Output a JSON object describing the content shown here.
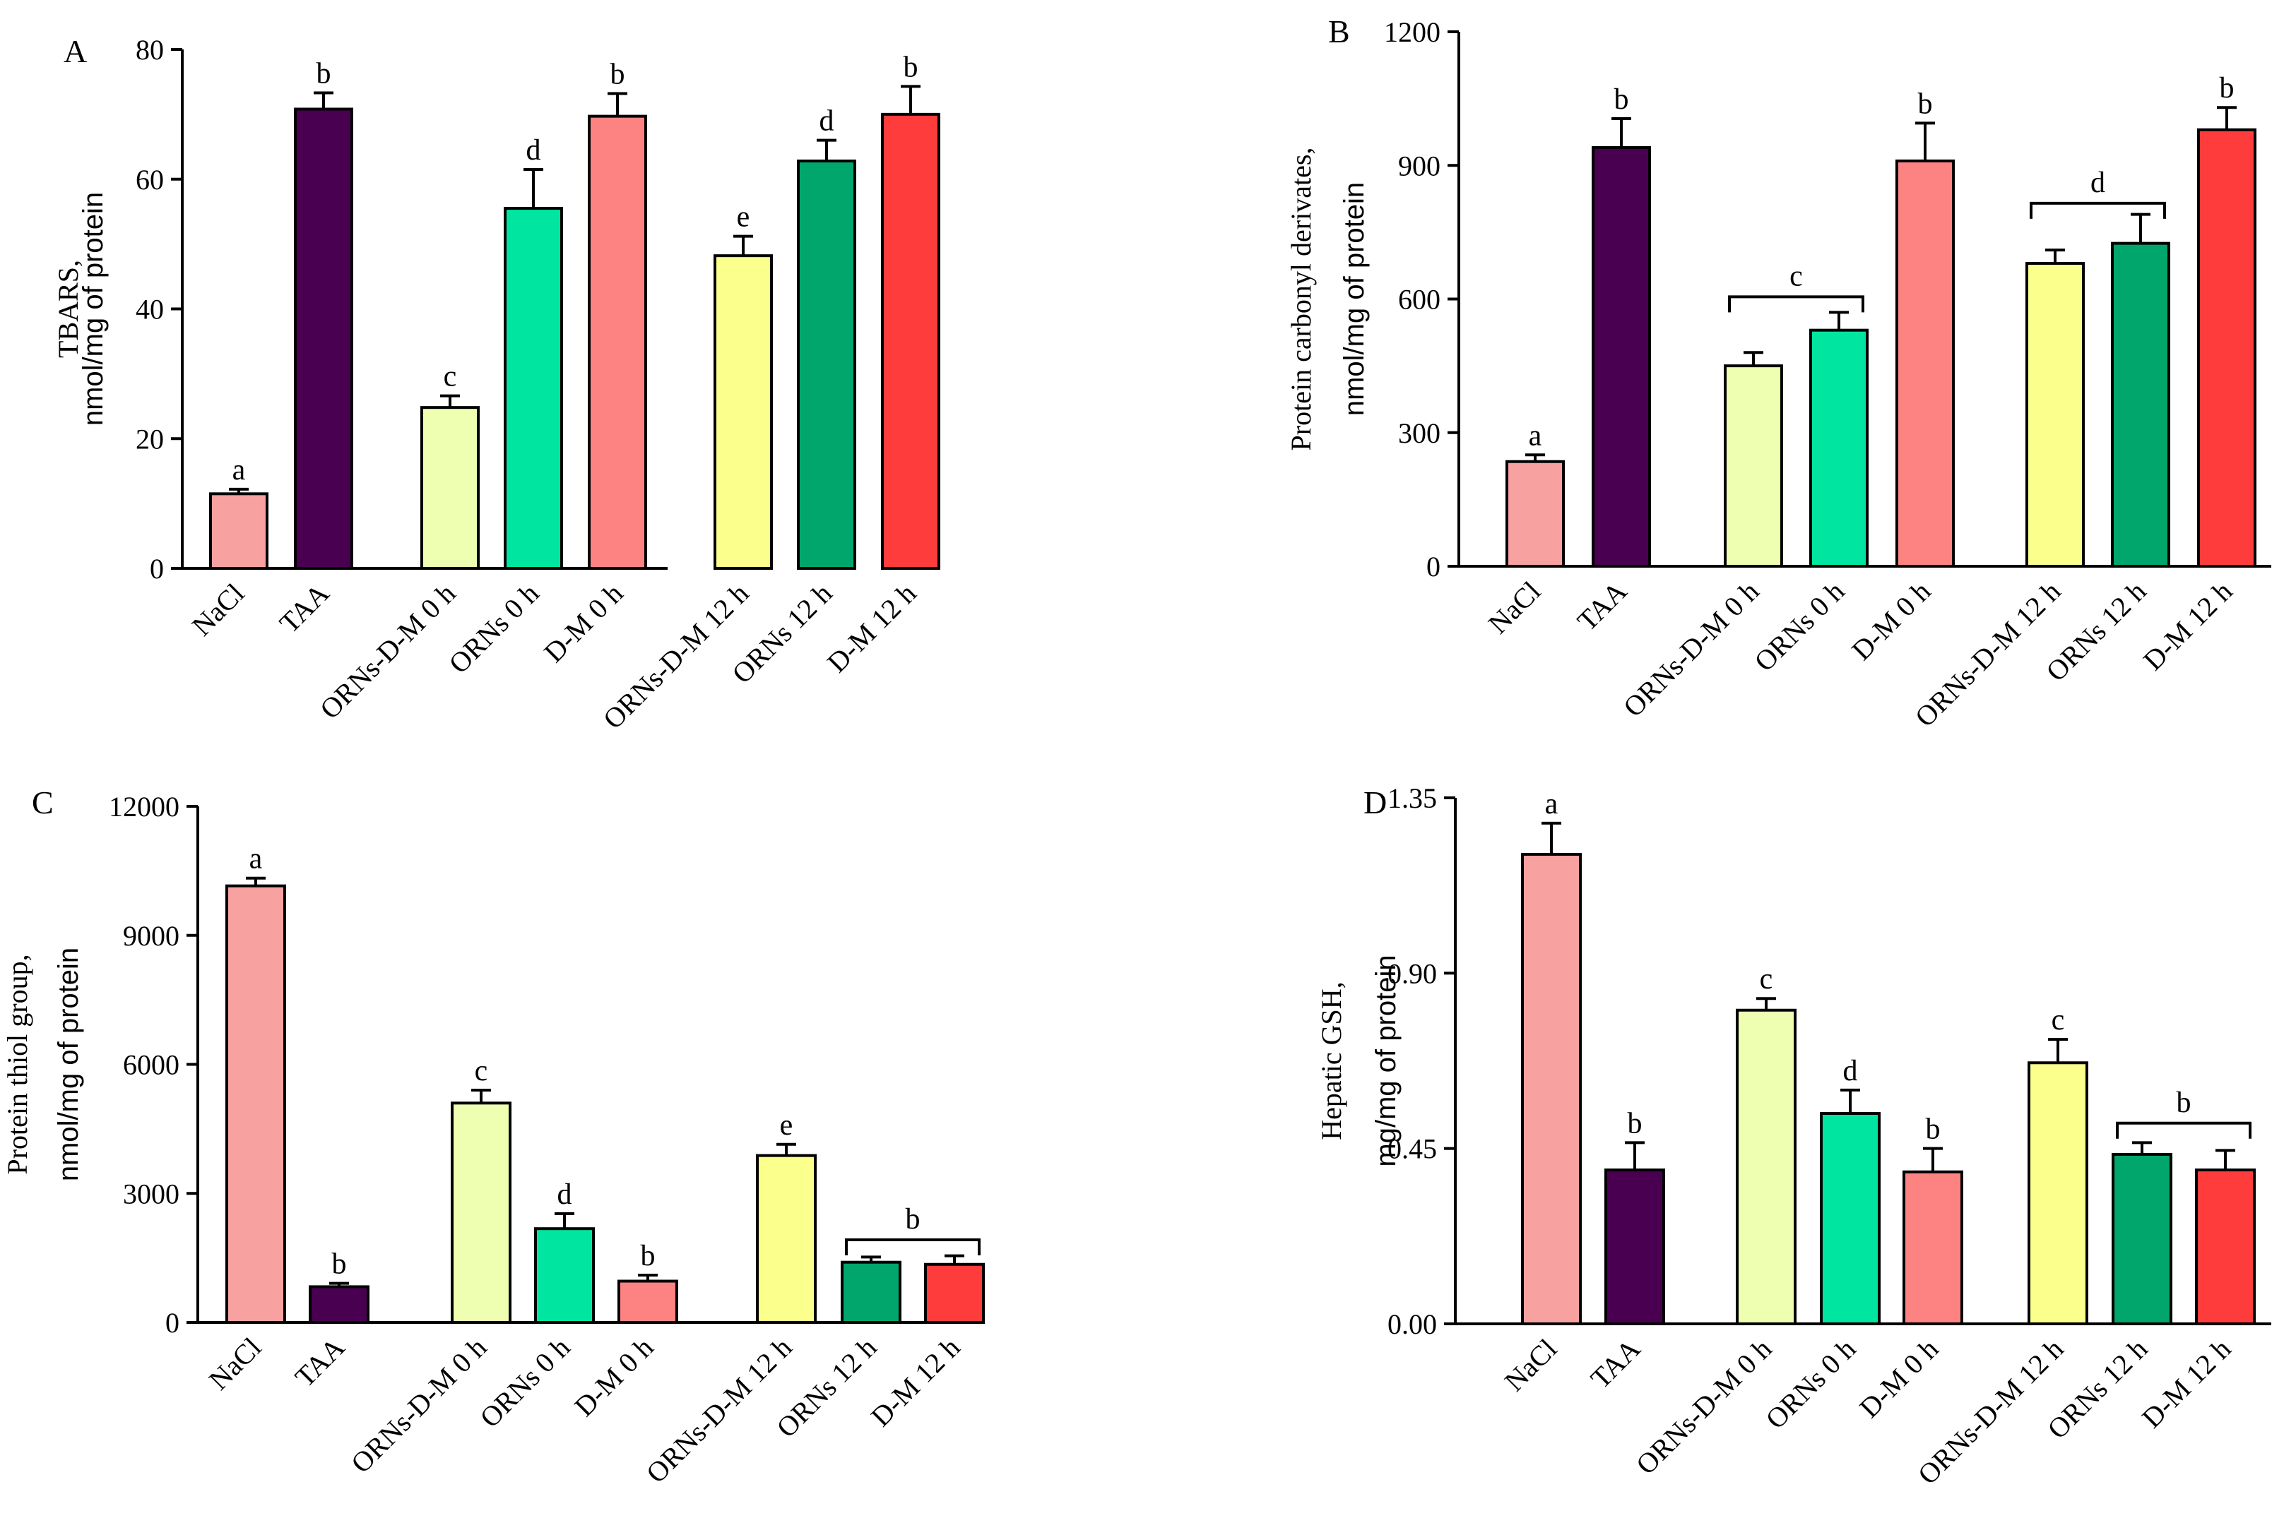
{
  "chart_data": [
    {
      "type": "bar",
      "panel_label": "A",
      "ylabel": "TBARS,",
      "ylabel_unit": "nmol/mg of protein",
      "ylim": [
        0,
        80
      ],
      "yticks": [
        "0",
        "20",
        "40",
        "60",
        "80"
      ],
      "categories": [
        "NaCl",
        "TAA",
        "ORNs-D-M 0 h",
        "ORNs 0 h",
        "D-M 0 h",
        "ORNs-D-M 12 h",
        "ORNs 12 h",
        "D-M 12 h"
      ],
      "values": [
        11.5,
        70.8,
        24.8,
        55.5,
        69.7,
        48.2,
        62.8,
        70
      ],
      "errors": [
        0.7,
        2.5,
        1.8,
        6,
        3.5,
        3,
        3.2,
        4.3
      ],
      "colors": [
        "#f7a1a1",
        "#4a0050",
        "#eeffb2",
        "#00e6a0",
        "#fd8383",
        "#fbff8c",
        "#00a66b",
        "#ff3c3c"
      ],
      "letters": [
        "a",
        "b",
        "c",
        "d",
        "b",
        "e",
        "d",
        "b"
      ],
      "brackets": []
    },
    {
      "type": "bar",
      "panel_label": "B",
      "ylabel": "Protein carbonyl derivates,",
      "ylabel_unit": "nmol/mg of protein",
      "ylim": [
        0,
        1200
      ],
      "yticks": [
        "0",
        "300",
        "600",
        "900",
        "1200"
      ],
      "categories": [
        "NaCl",
        "TAA",
        "ORNs-D-M 0 h",
        "ORNs 0 h",
        "D-M 0 h",
        "ORNs-D-M 12 h",
        "ORNs 12 h",
        "D-M 12 h"
      ],
      "values": [
        235,
        940,
        450,
        530,
        910,
        680,
        725,
        980
      ],
      "errors": [
        15,
        65,
        30,
        40,
        85,
        30,
        65,
        50
      ],
      "colors": [
        "#f7a1a1",
        "#4a0050",
        "#eeffb2",
        "#00e6a0",
        "#fd8383",
        "#fbff8c",
        "#00a66b",
        "#ff3c3c"
      ],
      "letters": [
        "a",
        "b",
        "",
        "",
        "b",
        "",
        "",
        "b"
      ],
      "brackets": [
        {
          "from": 2,
          "to": 3,
          "label": "c",
          "y": 605
        },
        {
          "from": 5,
          "to": 6,
          "label": "d",
          "y": 815
        }
      ]
    },
    {
      "type": "bar",
      "panel_label": "C",
      "ylabel": "Protein thiol group,",
      "ylabel_unit": "nmol/mg of protein",
      "ylim": [
        0,
        12000
      ],
      "yticks": [
        "0",
        "3000",
        "6000",
        "9000",
        "12000"
      ],
      "categories": [
        "NaCl",
        "TAA",
        "ORNs-D-M 0 h",
        "ORNs 0 h",
        "D-M 0 h",
        "ORNs-D-M 12 h",
        "ORNs 12 h",
        "D-M 12 h"
      ],
      "values": [
        10150,
        830,
        5100,
        2180,
        960,
        3880,
        1400,
        1350
      ],
      "errors": [
        180,
        80,
        300,
        350,
        140,
        260,
        120,
        200
      ],
      "colors": [
        "#f7a1a1",
        "#4a0050",
        "#eeffb2",
        "#00e6a0",
        "#fd8383",
        "#fbff8c",
        "#00a66b",
        "#ff3c3c"
      ],
      "letters": [
        "a",
        "b",
        "c",
        "d",
        "b",
        "e",
        "",
        ""
      ],
      "brackets": [
        {
          "from": 6,
          "to": 7,
          "label": "b",
          "y": 1920
        }
      ]
    },
    {
      "type": "bar",
      "panel_label": "D",
      "ylabel": "Hepatic GSH,",
      "ylabel_unit": "mg/mg of protein",
      "ylim": [
        0,
        1.35
      ],
      "yticks": [
        "0.00",
        "0.45",
        "0.90",
        "1.35"
      ],
      "categories": [
        "NaCl",
        "TAA",
        "ORNs-D-M 0 h",
        "ORNs 0 h",
        "D-M 0 h",
        "ORNs-D-M 12 h",
        "ORNs 12 h",
        "D-M 12 h"
      ],
      "values": [
        1.205,
        0.395,
        0.805,
        0.54,
        0.39,
        0.67,
        0.435,
        0.395
      ],
      "errors": [
        0.08,
        0.07,
        0.03,
        0.06,
        0.06,
        0.06,
        0.03,
        0.05
      ],
      "colors": [
        "#f7a1a1",
        "#4a0050",
        "#eeffb2",
        "#00e6a0",
        "#fd8383",
        "#fbff8c",
        "#00a66b",
        "#ff3c3c"
      ],
      "letters": [
        "a",
        "b",
        "c",
        "d",
        "b",
        "c",
        "",
        ""
      ],
      "brackets": [
        {
          "from": 6,
          "to": 7,
          "label": "b",
          "y": 0.515
        }
      ]
    }
  ]
}
